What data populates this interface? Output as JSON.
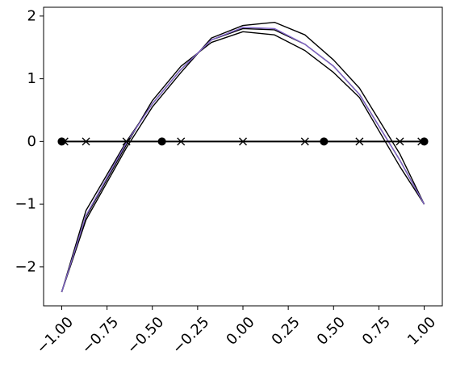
{
  "chart_data": {
    "type": "line",
    "title": "",
    "xlabel": "",
    "ylabel": "",
    "xlim": [
      -1.1,
      1.1
    ],
    "ylim": [
      -2.62,
      2.14
    ],
    "xticks": [
      -1.0,
      -0.75,
      -0.5,
      -0.25,
      0.0,
      0.25,
      0.5,
      0.75,
      1.0
    ],
    "xtick_labels": [
      "−1.00",
      "−0.75",
      "−0.50",
      "−0.25",
      "0.00",
      "0.25",
      "0.50",
      "0.75",
      "1.00"
    ],
    "yticks": [
      -2,
      -1,
      0,
      1,
      2
    ],
    "ytick_labels": [
      "−2",
      "−1",
      "0",
      "1",
      "2"
    ],
    "grid": false,
    "series": [
      {
        "color": "#000000",
        "x": [
          -1.0,
          -0.866,
          -0.643,
          -0.5,
          -0.342,
          -0.174,
          0.0,
          0.174,
          0.342,
          0.5,
          0.643,
          0.866,
          1.0
        ],
        "y": [
          -2.4,
          -1.1,
          0.0,
          0.6,
          1.15,
          1.62,
          1.8,
          1.78,
          1.55,
          1.2,
          0.75,
          -0.3,
          -1.0
        ]
      },
      {
        "color": "#000000",
        "x": [
          -1.0,
          -0.866,
          -0.643,
          -0.5,
          -0.342,
          -0.174,
          0.0,
          0.174,
          0.342,
          0.5,
          0.643,
          0.866,
          1.0
        ],
        "y": [
          -2.4,
          -1.25,
          -0.1,
          0.55,
          1.1,
          1.65,
          1.85,
          1.9,
          1.7,
          1.3,
          0.85,
          -0.2,
          -1.0
        ]
      },
      {
        "color": "#000000",
        "x": [
          -1.0,
          -0.866,
          -0.643,
          -0.5,
          -0.342,
          -0.174,
          0.0,
          0.174,
          0.342,
          0.5,
          0.643,
          0.866,
          1.0
        ],
        "y": [
          -2.4,
          -1.2,
          -0.05,
          0.65,
          1.2,
          1.58,
          1.75,
          1.7,
          1.45,
          1.1,
          0.7,
          -0.4,
          -1.0
        ]
      },
      {
        "color": "#8064c8",
        "x": [
          -1.0,
          -0.866,
          -0.643,
          -0.5,
          -0.342,
          -0.174,
          0.0,
          0.174,
          0.342,
          0.5,
          0.643,
          0.866,
          1.0
        ],
        "y": [
          -2.4,
          -1.18,
          -0.02,
          0.6,
          1.15,
          1.62,
          1.82,
          1.8,
          1.55,
          1.2,
          0.75,
          -0.3,
          -1.0
        ]
      }
    ],
    "horizontal_line": {
      "y": 0,
      "x": [
        -1.0,
        1.0
      ],
      "color": "#000000"
    },
    "markers_x": {
      "marker": "x",
      "x": [
        -0.985,
        -0.866,
        -0.643,
        -0.342,
        0.0,
        0.342,
        0.643,
        0.866,
        0.985
      ],
      "y": 0
    },
    "markers_dot": {
      "marker": "o",
      "x": [
        -1.0,
        -0.447,
        0.447,
        1.0
      ],
      "y": 0
    }
  }
}
